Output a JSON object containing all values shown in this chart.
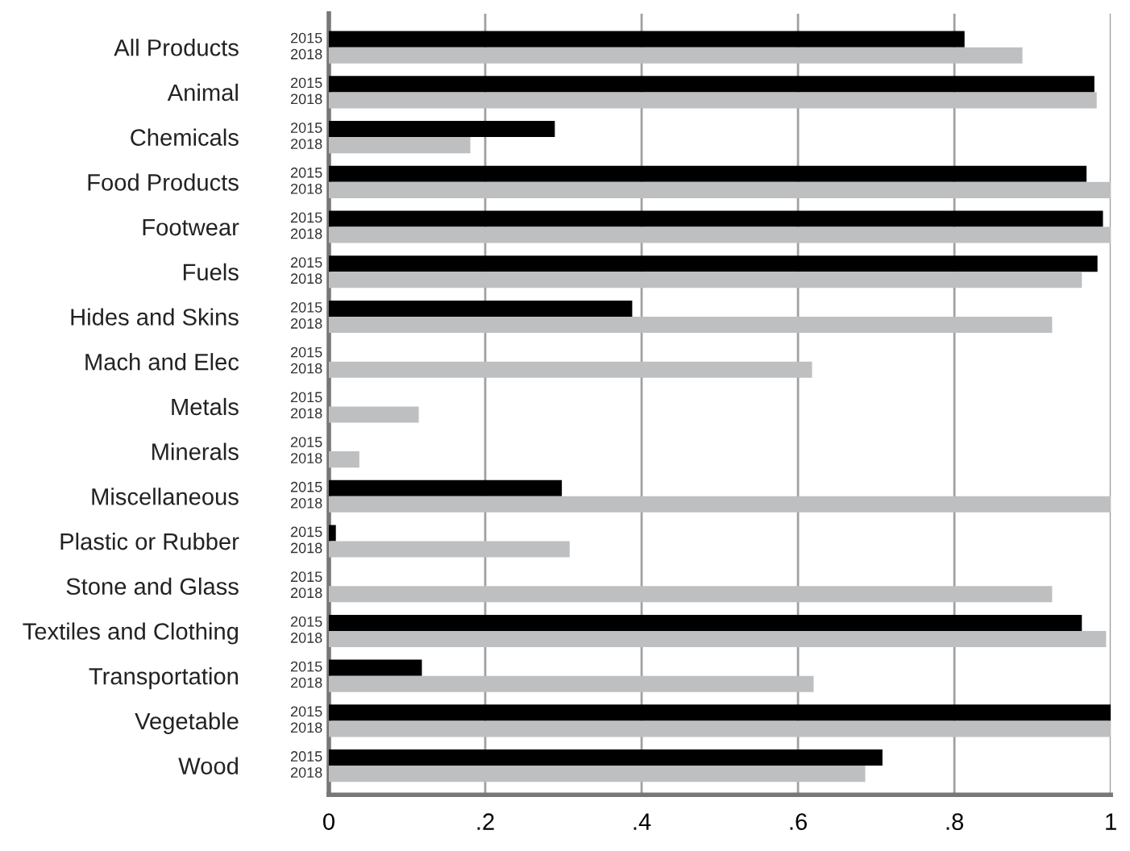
{
  "chart_data": {
    "type": "bar",
    "orientation": "horizontal",
    "categories": [
      "All Products",
      "Animal",
      "Chemicals",
      "Food Products",
      "Footwear",
      "Fuels",
      "Hides and Skins",
      "Mach and Elec",
      "Metals",
      "Minerals",
      "Miscellaneous",
      "Plastic or Rubber",
      "Stone and Glass",
      "Textiles and Clothing",
      "Transportation",
      "Vegetable",
      "Wood"
    ],
    "series": [
      {
        "name": "2015",
        "color": "#000000",
        "values": [
          0.813,
          0.979,
          0.289,
          0.969,
          0.99,
          0.983,
          0.388,
          null,
          null,
          null,
          0.298,
          0.009,
          null,
          0.963,
          0.119,
          1.0,
          0.708
        ]
      },
      {
        "name": "2018",
        "color": "#bebfc1",
        "values": [
          0.887,
          0.982,
          0.181,
          1.0,
          1.0,
          0.963,
          0.925,
          0.618,
          0.115,
          0.039,
          1.0,
          0.308,
          0.925,
          0.994,
          0.62,
          1.0,
          0.686
        ]
      }
    ],
    "xlim": [
      0,
      1
    ],
    "xticks": [
      0,
      {
        "value": 0.2,
        "label": ".2"
      },
      {
        "value": 0.4,
        "label": ".4"
      },
      {
        "value": 0.6,
        "label": ".6"
      },
      {
        "value": 0.8,
        "label": ".8"
      },
      1
    ],
    "grid": "x",
    "legend": false
  }
}
